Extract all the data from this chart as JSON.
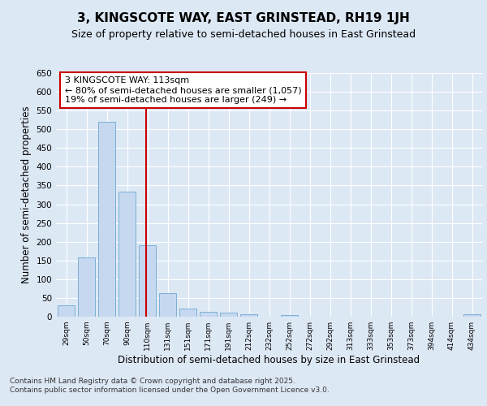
{
  "title": "3, KINGSCOTE WAY, EAST GRINSTEAD, RH19 1JH",
  "subtitle": "Size of property relative to semi-detached houses in East Grinstead",
  "xlabel": "Distribution of semi-detached houses by size in East Grinstead",
  "ylabel": "Number of semi-detached properties",
  "categories": [
    "29sqm",
    "50sqm",
    "70sqm",
    "90sqm",
    "110sqm",
    "131sqm",
    "151sqm",
    "171sqm",
    "191sqm",
    "212sqm",
    "232sqm",
    "252sqm",
    "272sqm",
    "292sqm",
    "313sqm",
    "333sqm",
    "353sqm",
    "373sqm",
    "394sqm",
    "414sqm",
    "434sqm"
  ],
  "values": [
    30,
    158,
    520,
    333,
    190,
    63,
    22,
    14,
    11,
    7,
    0,
    5,
    0,
    0,
    0,
    0,
    0,
    0,
    0,
    0,
    6
  ],
  "bar_color": "#c5d8f0",
  "bar_edge_color": "#7bafd4",
  "vline_x_index": 4.0,
  "vline_color": "#cc0000",
  "annotation_text": "3 KINGSCOTE WAY: 113sqm\n← 80% of semi-detached houses are smaller (1,057)\n19% of semi-detached houses are larger (249) →",
  "annotation_box_color": "white",
  "annotation_box_edge_color": "#cc0000",
  "ylim": [
    0,
    650
  ],
  "yticks": [
    0,
    50,
    100,
    150,
    200,
    250,
    300,
    350,
    400,
    450,
    500,
    550,
    600,
    650
  ],
  "bg_color": "#dde8f5",
  "plot_bg_color": "#dde8f5",
  "footer_text": "Contains HM Land Registry data © Crown copyright and database right 2025.\nContains public sector information licensed under the Open Government Licence v3.0.",
  "title_fontsize": 11,
  "subtitle_fontsize": 9,
  "xlabel_fontsize": 8.5,
  "ylabel_fontsize": 8.5,
  "annot_fontsize": 8,
  "footer_fontsize": 6.5
}
